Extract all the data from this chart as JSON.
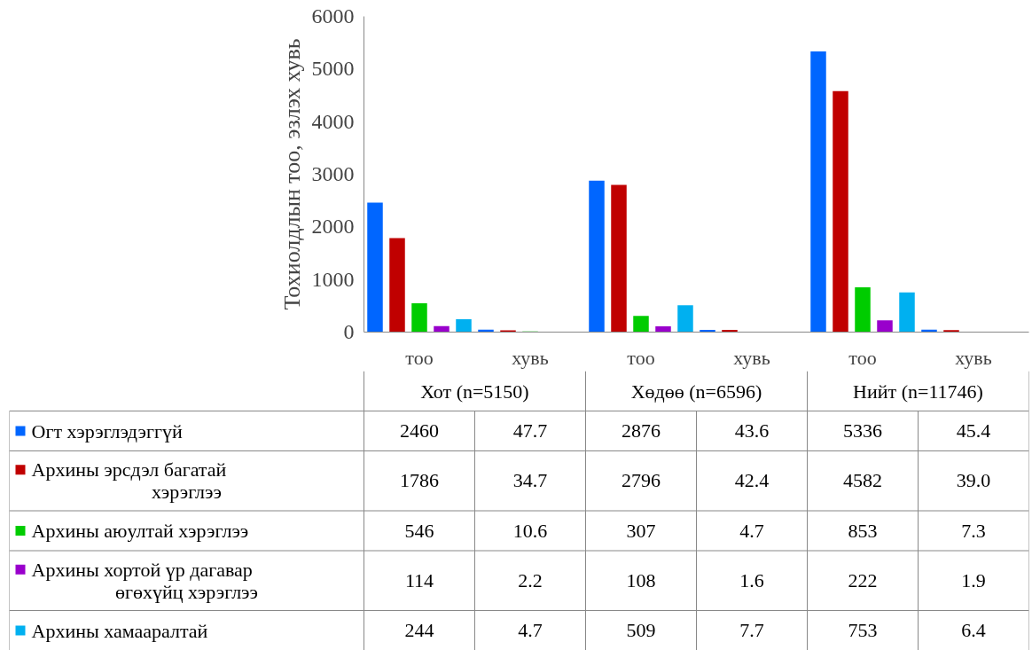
{
  "chart_data": {
    "type": "bar",
    "ylabel": "Тохиолдлын тоо, эзлэх хувь",
    "categories": [
      "тоо",
      "хувь",
      "тоо",
      "хувь",
      "тоо",
      "хувь"
    ],
    "annotations": [
      "Хот (n=5150)",
      "Хөдөө (n=6596)",
      "Нийт (n=11746)"
    ],
    "series": [
      {
        "name": "Огт хэрэглэдэггүй",
        "color": "#0066ff",
        "values": [
          2460,
          47.7,
          2876,
          43.6,
          5336,
          45.4
        ]
      },
      {
        "name": "Архины эрсдэл багатай хэрэглээ",
        "color": "#c00000",
        "values": [
          1786,
          34.7,
          2796,
          42.4,
          4582,
          39.0
        ],
        "value_labels": [
          "1786",
          "34.7",
          "2796",
          "42.4",
          "4582",
          "39.0"
        ]
      },
      {
        "name": "Архины аюултай хэрэглээ",
        "color": "#00cc00",
        "values": [
          546,
          10.6,
          307,
          4.7,
          853,
          7.3
        ]
      },
      {
        "name": "Архины хортой үр дагавар өгөхүйц хэрэглээ",
        "color": "#9900cc",
        "values": [
          114,
          2.2,
          108,
          1.6,
          222,
          1.9
        ]
      },
      {
        "name": "Архины хамааралтай",
        "color": "#00b0f0",
        "values": [
          244,
          4.7,
          509,
          7.7,
          753,
          6.4
        ]
      }
    ],
    "ylim": [
      0,
      6000
    ],
    "yticks": [
      0,
      1000,
      2000,
      3000,
      4000,
      5000,
      6000
    ],
    "grid": false,
    "legend": "bottom",
    "data_labels": true
  }
}
